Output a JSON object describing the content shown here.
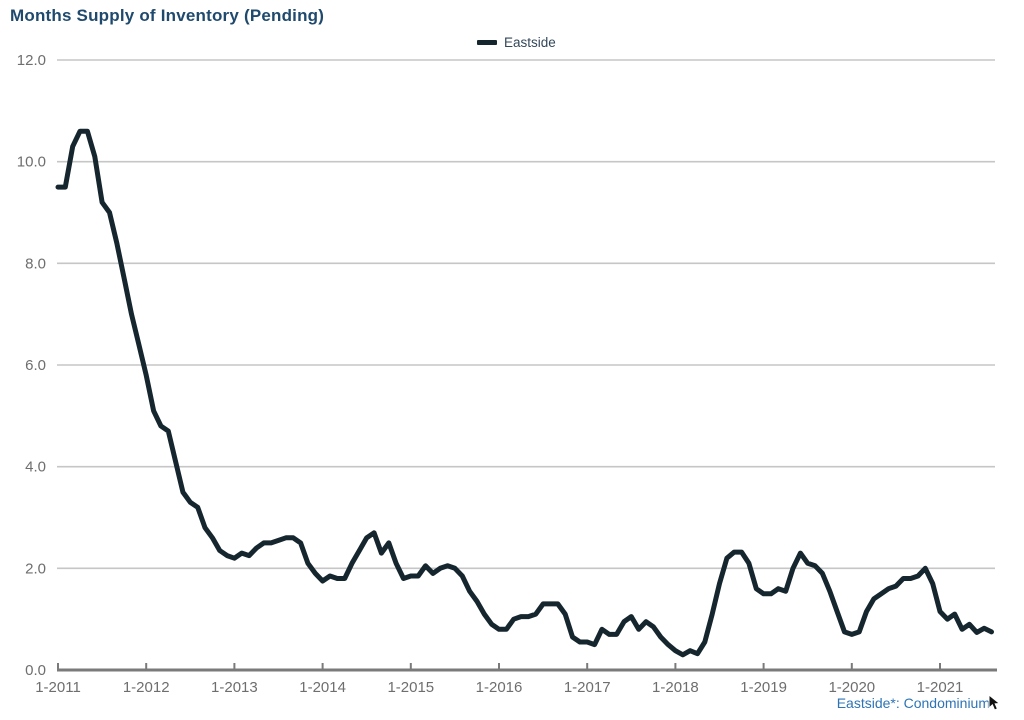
{
  "title": "Months Supply of Inventory (Pending)",
  "legend": {
    "series_label": "Eastside"
  },
  "footnote": "Eastside*: Condominium",
  "colors": {
    "title_text": "#1f4a6e",
    "series_line": "#16262e",
    "legend_text": "#33475a",
    "axis_label_text": "#6e6e6e",
    "gridline": "#c6c6c6",
    "axis_line": "#7a7a7a",
    "footnote_text": "#2e74b5",
    "background": "#ffffff"
  },
  "chart_data": {
    "type": "line",
    "title": "Months Supply of Inventory (Pending)",
    "xlabel": "",
    "ylabel": "",
    "ylim": [
      0,
      12
    ],
    "grid": "horizontal",
    "legend_position": "top-center",
    "x_tick_labels": [
      "1-2011",
      "1-2012",
      "1-2013",
      "1-2014",
      "1-2015",
      "1-2016",
      "1-2017",
      "1-2018",
      "1-2019",
      "1-2020",
      "1-2021"
    ],
    "y_tick_labels": [
      "0.0",
      "2.0",
      "4.0",
      "6.0",
      "8.0",
      "10.0",
      "12.0"
    ],
    "series": [
      {
        "name": "Eastside",
        "frequency": "monthly",
        "start": "2011-01",
        "end": "2021-08",
        "values": [
          9.5,
          9.5,
          10.3,
          10.6,
          10.6,
          10.1,
          9.2,
          9.0,
          8.4,
          7.7,
          7.0,
          6.4,
          5.8,
          5.1,
          4.8,
          4.7,
          4.1,
          3.5,
          3.3,
          3.2,
          2.8,
          2.6,
          2.35,
          2.25,
          2.2,
          2.3,
          2.25,
          2.4,
          2.5,
          2.5,
          2.55,
          2.6,
          2.6,
          2.5,
          2.1,
          1.9,
          1.75,
          1.85,
          1.8,
          1.8,
          2.1,
          2.35,
          2.6,
          2.7,
          2.3,
          2.5,
          2.1,
          1.8,
          1.85,
          1.85,
          2.05,
          1.9,
          2.0,
          2.05,
          2.0,
          1.85,
          1.55,
          1.35,
          1.1,
          0.9,
          0.8,
          0.8,
          1.0,
          1.05,
          1.05,
          1.1,
          1.3,
          1.3,
          1.3,
          1.1,
          0.65,
          0.55,
          0.55,
          0.5,
          0.8,
          0.7,
          0.7,
          0.95,
          1.05,
          0.8,
          0.95,
          0.85,
          0.65,
          0.5,
          0.38,
          0.3,
          0.38,
          0.32,
          0.55,
          1.1,
          1.7,
          2.2,
          2.32,
          2.32,
          2.1,
          1.6,
          1.5,
          1.5,
          1.6,
          1.55,
          2.0,
          2.3,
          2.1,
          2.05,
          1.9,
          1.55,
          1.15,
          0.75,
          0.7,
          0.75,
          1.15,
          1.4,
          1.5,
          1.6,
          1.65,
          1.8,
          1.8,
          1.85,
          2.0,
          1.7,
          1.15,
          1.0,
          1.1,
          0.8,
          0.9,
          0.74,
          0.82,
          0.75
        ]
      }
    ]
  }
}
